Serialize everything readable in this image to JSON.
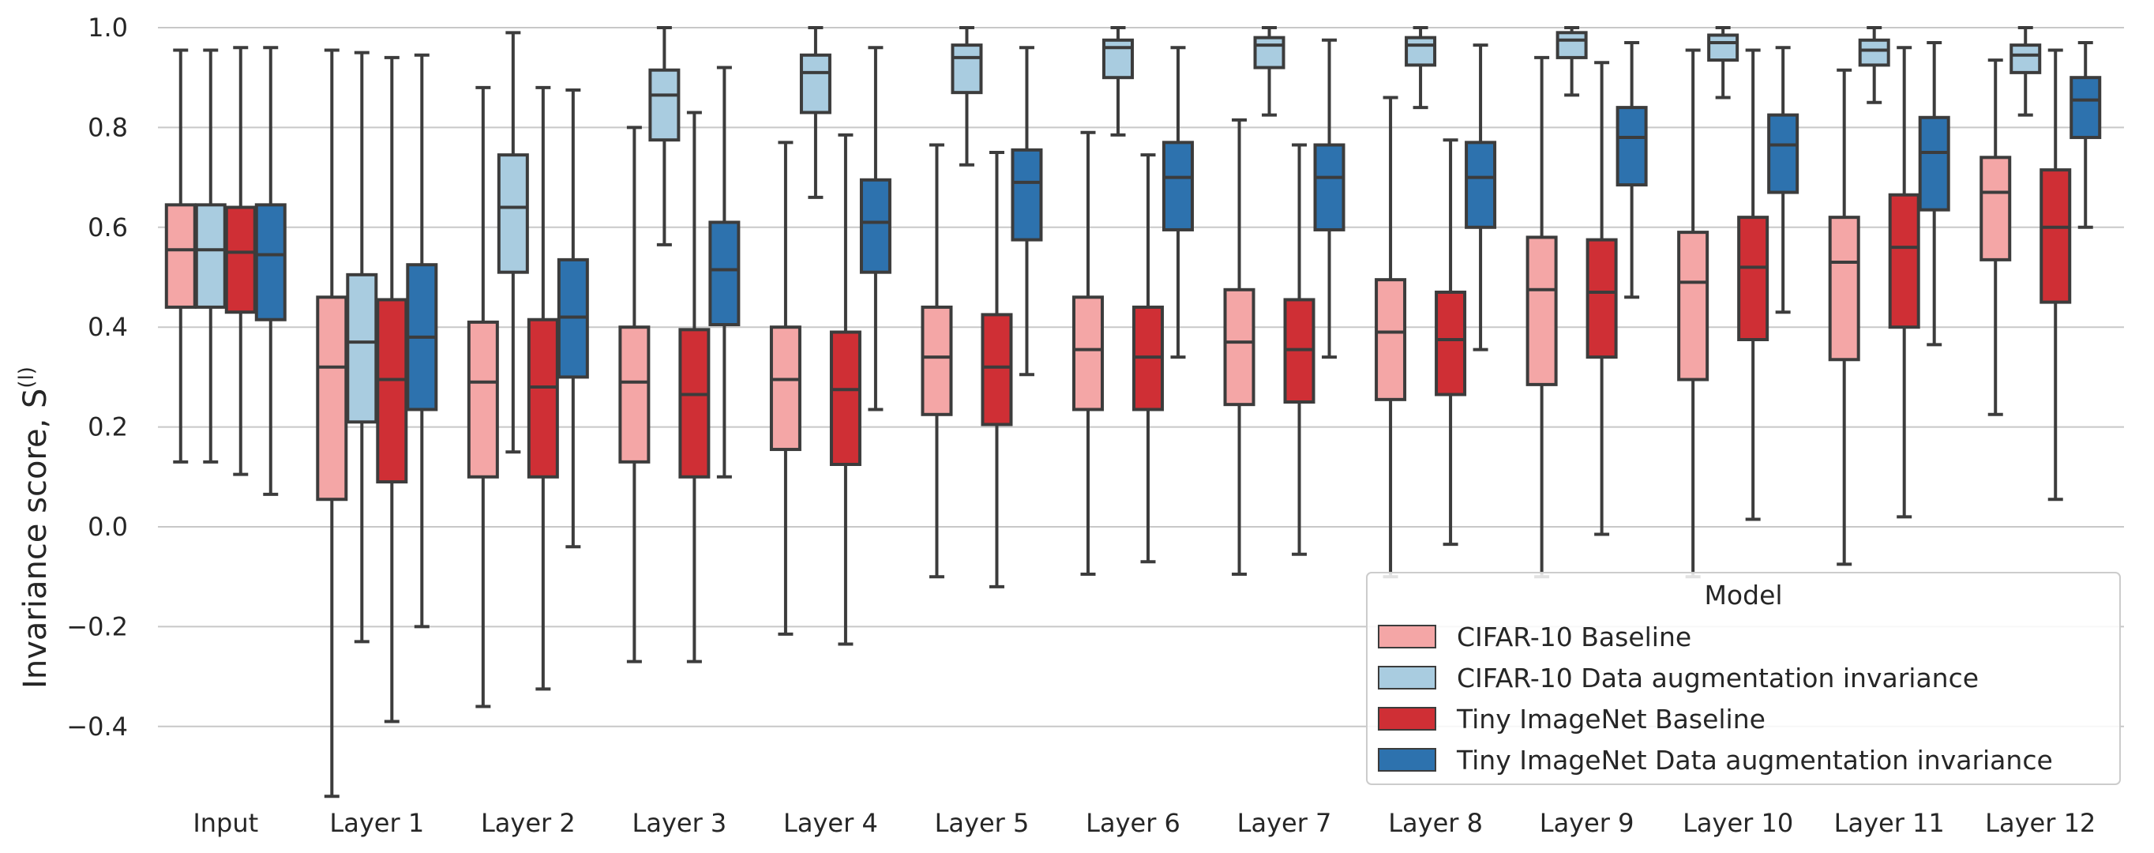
{
  "chart_data": {
    "type": "box",
    "ylabel": "Invariance score, S",
    "ylabel_sup": "(l)",
    "ylim": [
      -0.55,
      1.0
    ],
    "yticks": [
      -0.4,
      -0.2,
      0.0,
      0.2,
      0.4,
      0.6,
      0.8,
      1.0
    ],
    "ytick_labels": [
      "−0.4",
      "−0.2",
      "0.0",
      "0.2",
      "0.4",
      "0.6",
      "0.8",
      "1.0"
    ],
    "grid": "horizontal",
    "legend_position": "bottom-right",
    "categories": [
      "Input",
      "Layer 1",
      "Layer 2",
      "Layer 3",
      "Layer 4",
      "Layer 5",
      "Layer 6",
      "Layer 7",
      "Layer 8",
      "Layer 9",
      "Layer 10",
      "Layer 11",
      "Layer 12"
    ],
    "legend": {
      "title": "Model",
      "entries": [
        "CIFAR-10 Baseline",
        "CIFAR-10 Data augmentation invariance",
        "Tiny ImageNet Baseline",
        "Tiny ImageNet Data augmentation invariance"
      ]
    },
    "series": [
      {
        "name": "CIFAR-10 Baseline",
        "color": "#f4a6a6",
        "boxes": [
          {
            "whislo": 0.13,
            "q1": 0.44,
            "med": 0.555,
            "q3": 0.645,
            "whishi": 0.955
          },
          {
            "whislo": -0.54,
            "q1": 0.055,
            "med": 0.32,
            "q3": 0.46,
            "whishi": 0.955
          },
          {
            "whislo": -0.36,
            "q1": 0.1,
            "med": 0.29,
            "q3": 0.41,
            "whishi": 0.88
          },
          {
            "whislo": -0.27,
            "q1": 0.13,
            "med": 0.29,
            "q3": 0.4,
            "whishi": 0.8
          },
          {
            "whislo": -0.215,
            "q1": 0.155,
            "med": 0.295,
            "q3": 0.4,
            "whishi": 0.77
          },
          {
            "whislo": -0.1,
            "q1": 0.225,
            "med": 0.34,
            "q3": 0.44,
            "whishi": 0.765
          },
          {
            "whislo": -0.095,
            "q1": 0.235,
            "med": 0.355,
            "q3": 0.46,
            "whishi": 0.79
          },
          {
            "whislo": -0.095,
            "q1": 0.245,
            "med": 0.37,
            "q3": 0.475,
            "whishi": 0.815
          },
          {
            "whislo": -0.1,
            "q1": 0.255,
            "med": 0.39,
            "q3": 0.495,
            "whishi": 0.86
          },
          {
            "whislo": -0.1,
            "q1": 0.285,
            "med": 0.475,
            "q3": 0.58,
            "whishi": 0.94
          },
          {
            "whislo": -0.1,
            "q1": 0.295,
            "med": 0.49,
            "q3": 0.59,
            "whishi": 0.955
          },
          {
            "whislo": -0.075,
            "q1": 0.335,
            "med": 0.53,
            "q3": 0.62,
            "whishi": 0.915
          },
          {
            "whislo": 0.225,
            "q1": 0.535,
            "med": 0.67,
            "q3": 0.74,
            "whishi": 0.935
          }
        ]
      },
      {
        "name": "CIFAR-10 Data augmentation invariance",
        "color": "#a9cce0",
        "boxes": [
          {
            "whislo": 0.13,
            "q1": 0.44,
            "med": 0.555,
            "q3": 0.645,
            "whishi": 0.955
          },
          {
            "whislo": -0.23,
            "q1": 0.21,
            "med": 0.37,
            "q3": 0.505,
            "whishi": 0.95
          },
          {
            "whislo": 0.15,
            "q1": 0.51,
            "med": 0.64,
            "q3": 0.745,
            "whishi": 0.99
          },
          {
            "whislo": 0.565,
            "q1": 0.775,
            "med": 0.865,
            "q3": 0.915,
            "whishi": 1.0
          },
          {
            "whislo": 0.66,
            "q1": 0.83,
            "med": 0.91,
            "q3": 0.945,
            "whishi": 1.0
          },
          {
            "whislo": 0.725,
            "q1": 0.87,
            "med": 0.94,
            "q3": 0.965,
            "whishi": 1.0
          },
          {
            "whislo": 0.785,
            "q1": 0.9,
            "med": 0.96,
            "q3": 0.975,
            "whishi": 1.0
          },
          {
            "whislo": 0.825,
            "q1": 0.92,
            "med": 0.965,
            "q3": 0.98,
            "whishi": 1.0
          },
          {
            "whislo": 0.84,
            "q1": 0.925,
            "med": 0.965,
            "q3": 0.98,
            "whishi": 1.0
          },
          {
            "whislo": 0.865,
            "q1": 0.94,
            "med": 0.975,
            "q3": 0.99,
            "whishi": 1.0
          },
          {
            "whislo": 0.86,
            "q1": 0.935,
            "med": 0.97,
            "q3": 0.985,
            "whishi": 1.0
          },
          {
            "whislo": 0.85,
            "q1": 0.925,
            "med": 0.955,
            "q3": 0.975,
            "whishi": 1.0
          },
          {
            "whislo": 0.825,
            "q1": 0.91,
            "med": 0.945,
            "q3": 0.965,
            "whishi": 1.0
          }
        ]
      },
      {
        "name": "Tiny ImageNet Baseline",
        "color": "#cf2f35",
        "boxes": [
          {
            "whislo": 0.105,
            "q1": 0.43,
            "med": 0.55,
            "q3": 0.64,
            "whishi": 0.96
          },
          {
            "whislo": -0.39,
            "q1": 0.09,
            "med": 0.295,
            "q3": 0.455,
            "whishi": 0.94
          },
          {
            "whislo": -0.325,
            "q1": 0.1,
            "med": 0.28,
            "q3": 0.415,
            "whishi": 0.88
          },
          {
            "whislo": -0.27,
            "q1": 0.1,
            "med": 0.265,
            "q3": 0.395,
            "whishi": 0.83
          },
          {
            "whislo": -0.235,
            "q1": 0.125,
            "med": 0.275,
            "q3": 0.39,
            "whishi": 0.785
          },
          {
            "whislo": -0.12,
            "q1": 0.205,
            "med": 0.32,
            "q3": 0.425,
            "whishi": 0.75
          },
          {
            "whislo": -0.07,
            "q1": 0.235,
            "med": 0.34,
            "q3": 0.44,
            "whishi": 0.745
          },
          {
            "whislo": -0.055,
            "q1": 0.25,
            "med": 0.355,
            "q3": 0.455,
            "whishi": 0.765
          },
          {
            "whislo": -0.035,
            "q1": 0.265,
            "med": 0.375,
            "q3": 0.47,
            "whishi": 0.775
          },
          {
            "whislo": -0.015,
            "q1": 0.34,
            "med": 0.47,
            "q3": 0.575,
            "whishi": 0.93
          },
          {
            "whislo": 0.015,
            "q1": 0.375,
            "med": 0.52,
            "q3": 0.62,
            "whishi": 0.955
          },
          {
            "whislo": 0.02,
            "q1": 0.4,
            "med": 0.56,
            "q3": 0.665,
            "whishi": 0.96
          },
          {
            "whislo": 0.055,
            "q1": 0.45,
            "med": 0.6,
            "q3": 0.715,
            "whishi": 0.955
          }
        ]
      },
      {
        "name": "Tiny ImageNet Data augmentation invariance",
        "color": "#2d72ae",
        "boxes": [
          {
            "whislo": 0.065,
            "q1": 0.415,
            "med": 0.545,
            "q3": 0.645,
            "whishi": 0.96
          },
          {
            "whislo": -0.2,
            "q1": 0.235,
            "med": 0.38,
            "q3": 0.525,
            "whishi": 0.945
          },
          {
            "whislo": -0.04,
            "q1": 0.3,
            "med": 0.42,
            "q3": 0.535,
            "whishi": 0.875
          },
          {
            "whislo": 0.1,
            "q1": 0.405,
            "med": 0.515,
            "q3": 0.61,
            "whishi": 0.92
          },
          {
            "whislo": 0.235,
            "q1": 0.51,
            "med": 0.61,
            "q3": 0.695,
            "whishi": 0.96
          },
          {
            "whislo": 0.305,
            "q1": 0.575,
            "med": 0.69,
            "q3": 0.755,
            "whishi": 0.96
          },
          {
            "whislo": 0.34,
            "q1": 0.595,
            "med": 0.7,
            "q3": 0.77,
            "whishi": 0.96
          },
          {
            "whislo": 0.34,
            "q1": 0.595,
            "med": 0.7,
            "q3": 0.765,
            "whishi": 0.975
          },
          {
            "whislo": 0.355,
            "q1": 0.6,
            "med": 0.7,
            "q3": 0.77,
            "whishi": 0.965
          },
          {
            "whislo": 0.46,
            "q1": 0.685,
            "med": 0.78,
            "q3": 0.84,
            "whishi": 0.97
          },
          {
            "whislo": 0.43,
            "q1": 0.67,
            "med": 0.765,
            "q3": 0.825,
            "whishi": 0.96
          },
          {
            "whislo": 0.365,
            "q1": 0.635,
            "med": 0.75,
            "q3": 0.82,
            "whishi": 0.97
          },
          {
            "whislo": 0.6,
            "q1": 0.78,
            "med": 0.855,
            "q3": 0.9,
            "whishi": 0.97
          }
        ]
      }
    ]
  }
}
